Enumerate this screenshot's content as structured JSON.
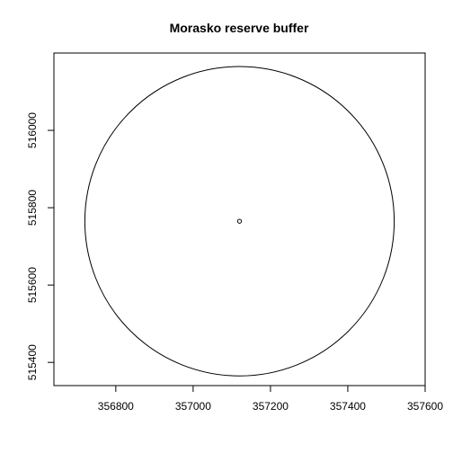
{
  "chart_data": {
    "type": "scatter",
    "title": "Morasko reserve buffer",
    "xlabel": "",
    "ylabel": "",
    "xlim": [
      356640,
      357600
    ],
    "ylim": [
      515340,
      516200
    ],
    "x_ticks": [
      356800,
      357000,
      357200,
      357400,
      357600
    ],
    "x_tick_labels": [
      "356800",
      "357000",
      "357200",
      "357400",
      "357600"
    ],
    "y_ticks": [
      515400,
      515600,
      515800,
      516000
    ],
    "y_tick_labels": [
      "515400",
      "515600",
      "515800",
      "516000"
    ],
    "grid": false,
    "series": [
      {
        "kind": "buffer-circle",
        "center": [
          357120,
          515765
        ],
        "radius": 400
      },
      {
        "kind": "point",
        "x": [
          357120
        ],
        "y": [
          515765
        ]
      }
    ],
    "colors": {
      "line": "#000000",
      "background": "#ffffff"
    }
  }
}
